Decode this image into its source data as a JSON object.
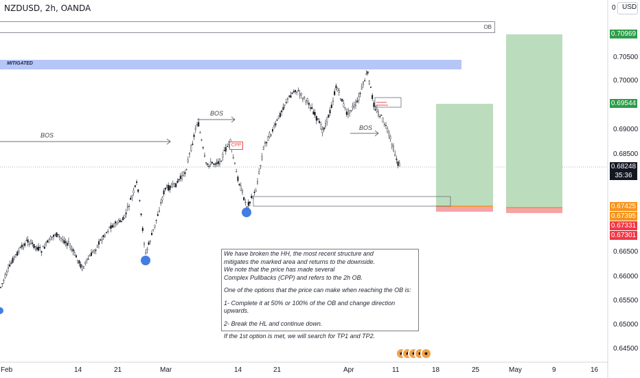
{
  "header": {
    "symbol_text": "NZDUSD, 2h, OANDA",
    "currency_label": "USD",
    "currency_counter": "0"
  },
  "colors": {
    "candle_up": "#131722",
    "candle_down": "#131722",
    "tp_green": "#b7dbb9",
    "sl_red": "#f4a3a6",
    "entry_orange": "#f7931a",
    "mitigated_blue": "#b6c7f7",
    "pivot_dot": "#2f6fdf",
    "price_tag_dark": "#131722"
  },
  "price_axis": {
    "ticks": [
      "0.70500",
      "0.70000",
      "0.69000",
      "0.68500",
      "0.66500",
      "0.66000",
      "0.65500",
      "0.65000",
      "0.64500"
    ],
    "tags": [
      {
        "label": "0.70969",
        "color": "#2e9d49"
      },
      {
        "label": "0.69544",
        "color": "#2e9d49"
      },
      {
        "label": "0.68248",
        "color": "#131722"
      },
      {
        "label": "35:36",
        "color": "#131722"
      },
      {
        "label": "0.67425",
        "color": "#f7931a"
      },
      {
        "label": "0.67395",
        "color": "#f7931a"
      },
      {
        "label": "0.67331",
        "color": "#f23645"
      },
      {
        "label": "0.67301",
        "color": "#f23645"
      }
    ]
  },
  "time_axis": {
    "labels": [
      "Feb",
      "14",
      "21",
      "Mar",
      "14",
      "21",
      "Apr",
      "11",
      "18",
      "25",
      "May",
      "9",
      "16"
    ]
  },
  "annotations": {
    "bos_1": "BOS",
    "bos_2": "BOS",
    "bos_3": "BOS",
    "cpp": "CPP",
    "mitigated": "MITIGATED",
    "ob": "OB"
  },
  "note": {
    "line1": "We have broken the HH, the most recent structure and",
    "line2": "mitigates the marked area and returns to the downside.",
    "line3": "We note that the price has made several",
    "line4": "Complex Pullbacks (CPP) and refers to the 2h OB.",
    "line5": "One of the options that the price can make when reaching the OB is:",
    "line6": "1- Complete it at 50% or 100% of the OB and change direction upwards.",
    "line7": "2- Break the HL and continue down.",
    "line8": "If the 1st option is met, we will search for TP1 and TP2."
  },
  "events": {
    "icon_names": [
      "us-flag-icon",
      "us-flag-icon",
      "us-flag-icon",
      "us-flag-icon",
      "us-flag-icon"
    ]
  }
}
